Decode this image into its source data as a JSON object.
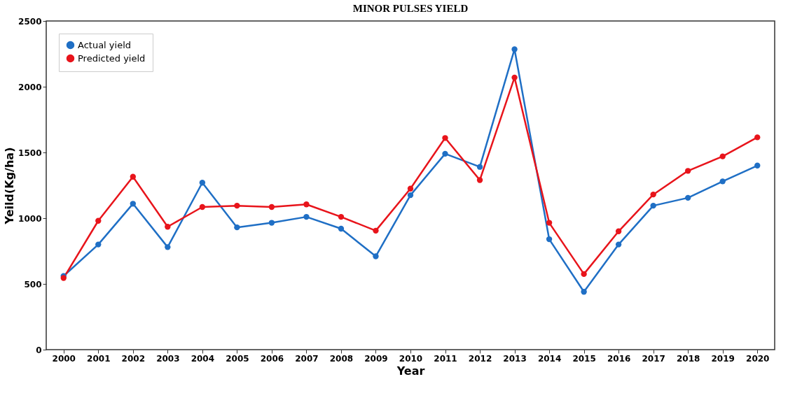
{
  "chart_data": {
    "type": "line",
    "title": "MINOR PULSES YIELD",
    "xlabel": "Year",
    "ylabel": "Yeild(Kg/ha)",
    "categories": [
      "2000",
      "2001",
      "2002",
      "2003",
      "2004",
      "2005",
      "2006",
      "2007",
      "2008",
      "2009",
      "2010",
      "2011",
      "2012",
      "2013",
      "2014",
      "2015",
      "2016",
      "2017",
      "2018",
      "2019",
      "2020"
    ],
    "series": [
      {
        "name": "Actual yield",
        "color": "#1f6fc5",
        "values": [
          560,
          800,
          1110,
          780,
          1270,
          930,
          965,
          1010,
          920,
          710,
          1175,
          1490,
          1390,
          2285,
          840,
          440,
          800,
          1095,
          1155,
          1280,
          1400
        ]
      },
      {
        "name": "Predicted yield",
        "color": "#e8141b",
        "values": [
          545,
          980,
          1315,
          935,
          1085,
          1095,
          1085,
          1105,
          1010,
          905,
          1225,
          1610,
          1290,
          2070,
          965,
          575,
          900,
          1180,
          1360,
          1470,
          1615
        ]
      }
    ],
    "ylim": [
      0,
      2500
    ],
    "yticks": [
      0,
      500,
      1000,
      1500,
      2000,
      2500
    ],
    "grid": false,
    "legend": "top left",
    "marker": "circle",
    "line_style": "solid"
  }
}
